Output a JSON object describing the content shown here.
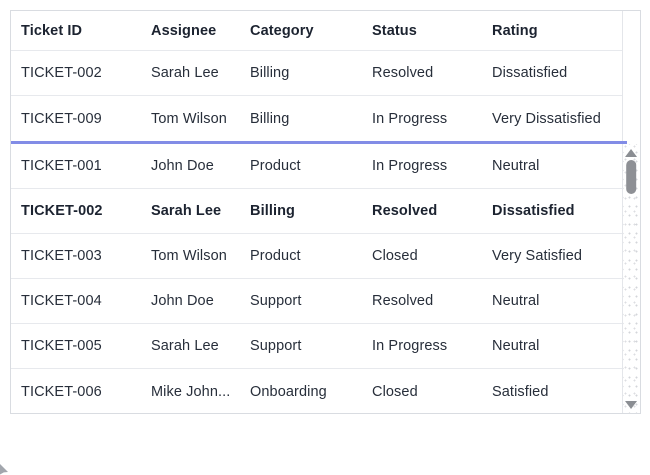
{
  "colors": {
    "pinned_separator": "#828ce6",
    "header_text": "#1c2330",
    "cell_text": "#272e3a",
    "row_border": "#e7e9ed",
    "outer_border": "#d9dce1",
    "scrollbar_thumb": "#8e9095",
    "scrollbar_arrow": "#8b8e93"
  },
  "table": {
    "columns": [
      {
        "id": "ticket_id",
        "label": "Ticket ID"
      },
      {
        "id": "assignee",
        "label": "Assignee"
      },
      {
        "id": "category",
        "label": "Category"
      },
      {
        "id": "status",
        "label": "Status"
      },
      {
        "id": "rating",
        "label": "Rating"
      }
    ],
    "pinned_rows": [
      {
        "emphasized": false,
        "cells": [
          "TICKET-002",
          "Sarah Lee",
          "Billing",
          "Resolved",
          "Dissatisfied"
        ]
      },
      {
        "emphasized": false,
        "cells": [
          "TICKET-009",
          "Tom Wilson",
          "Billing",
          "In Progress",
          "Very Dissatisfied"
        ]
      }
    ],
    "rows": [
      {
        "emphasized": false,
        "cells": [
          "TICKET-001",
          "John Doe",
          "Product",
          "In Progress",
          "Neutral"
        ]
      },
      {
        "emphasized": true,
        "cells": [
          "TICKET-002",
          "Sarah Lee",
          "Billing",
          "Resolved",
          "Dissatisfied"
        ]
      },
      {
        "emphasized": false,
        "cells": [
          "TICKET-003",
          "Tom Wilson",
          "Product",
          "Closed",
          "Very Satisfied"
        ]
      },
      {
        "emphasized": false,
        "cells": [
          "TICKET-004",
          "John Doe",
          "Support",
          "Resolved",
          "Neutral"
        ]
      },
      {
        "emphasized": false,
        "cells": [
          "TICKET-005",
          "Sarah Lee",
          "Support",
          "In Progress",
          "Neutral"
        ]
      },
      {
        "emphasized": false,
        "cells": [
          "TICKET-006",
          "Mike John...",
          "Onboarding",
          "Closed",
          "Satisfied"
        ]
      }
    ]
  }
}
